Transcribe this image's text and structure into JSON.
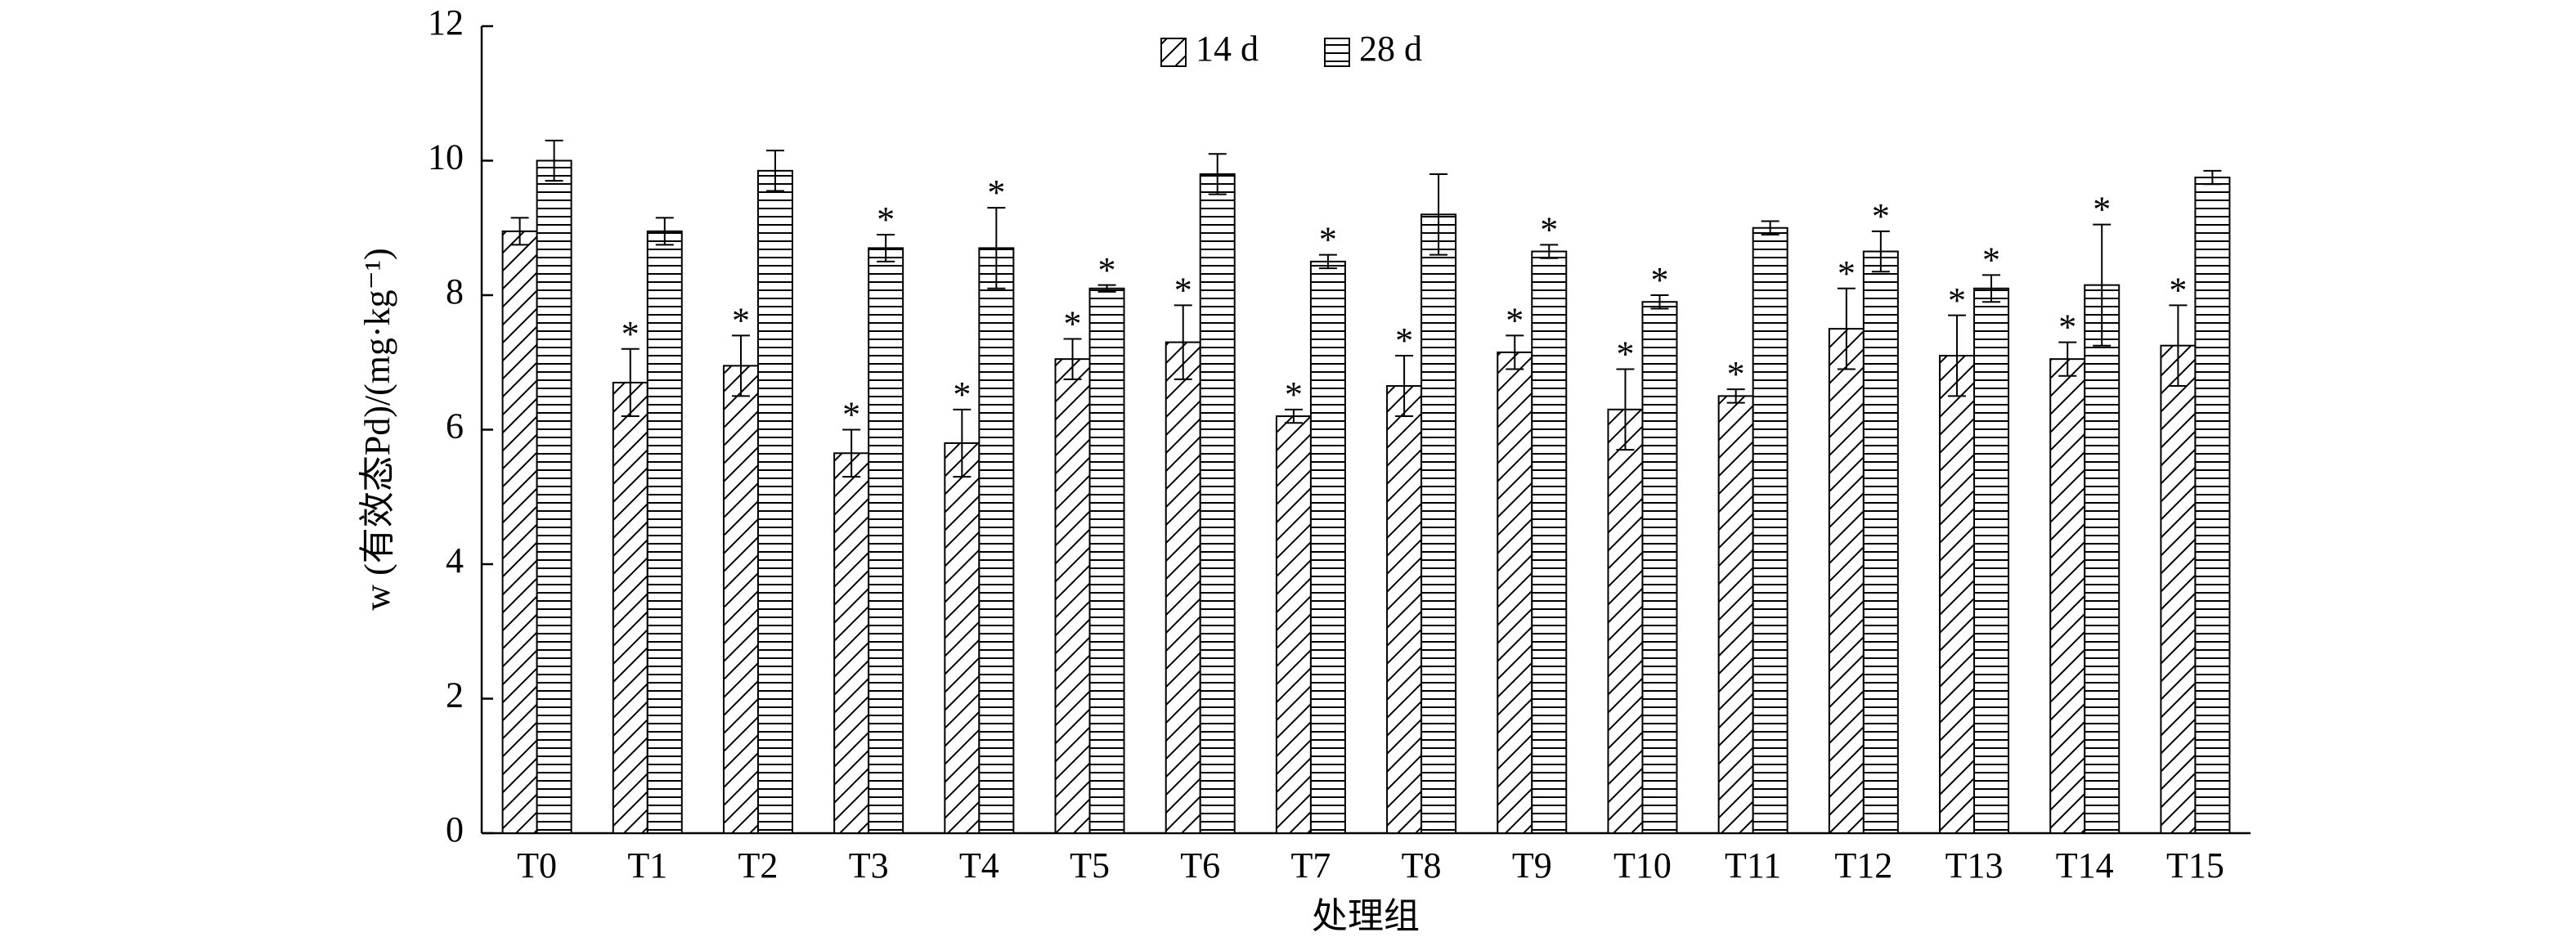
{
  "chart_data": {
    "type": "bar",
    "y_label": "w (有效态Pd)/(mg·kg⁻¹)",
    "x_label": "处理组",
    "categories": [
      "T0",
      "T1",
      "T2",
      "T3",
      "T4",
      "T5",
      "T6",
      "T7",
      "T8",
      "T9",
      "T10",
      "T11",
      "T12",
      "T13",
      "T14",
      "T15"
    ],
    "series": [
      {
        "name": "14 d",
        "color": "#000000",
        "pattern": "diagonal",
        "values": [
          8.95,
          6.7,
          6.95,
          5.65,
          5.8,
          7.05,
          7.3,
          6.2,
          6.65,
          7.15,
          6.3,
          6.5,
          7.5,
          7.1,
          7.05,
          7.25
        ],
        "errors": [
          0.2,
          0.5,
          0.45,
          0.35,
          0.5,
          0.3,
          0.55,
          0.1,
          0.45,
          0.25,
          0.6,
          0.1,
          0.6,
          0.6,
          0.25,
          0.6
        ],
        "significance": [
          null,
          "*",
          "*",
          "*",
          "*",
          "*",
          "*",
          "*",
          "*",
          "*",
          "*",
          "*",
          "*",
          "*",
          "*",
          "*"
        ]
      },
      {
        "name": "28 d",
        "color": "#000000",
        "pattern": "horizontal",
        "values": [
          10.0,
          8.95,
          9.85,
          8.7,
          8.7,
          8.1,
          9.8,
          8.5,
          9.2,
          8.65,
          7.9,
          9.0,
          8.65,
          8.1,
          8.15,
          9.75
        ],
        "errors": [
          0.3,
          0.2,
          0.3,
          0.2,
          0.6,
          0.05,
          0.3,
          0.1,
          0.6,
          0.1,
          0.1,
          0.1,
          0.3,
          0.2,
          0.9,
          0.1
        ],
        "significance": [
          null,
          null,
          null,
          "*",
          "*",
          "*",
          null,
          "*",
          null,
          "*",
          "*",
          null,
          "*",
          "*",
          "*",
          null
        ]
      }
    ],
    "ylim": [
      0,
      12
    ],
    "yticks": [
      0,
      2,
      4,
      6,
      8,
      10,
      12
    ],
    "grid": false,
    "legend": "top"
  }
}
